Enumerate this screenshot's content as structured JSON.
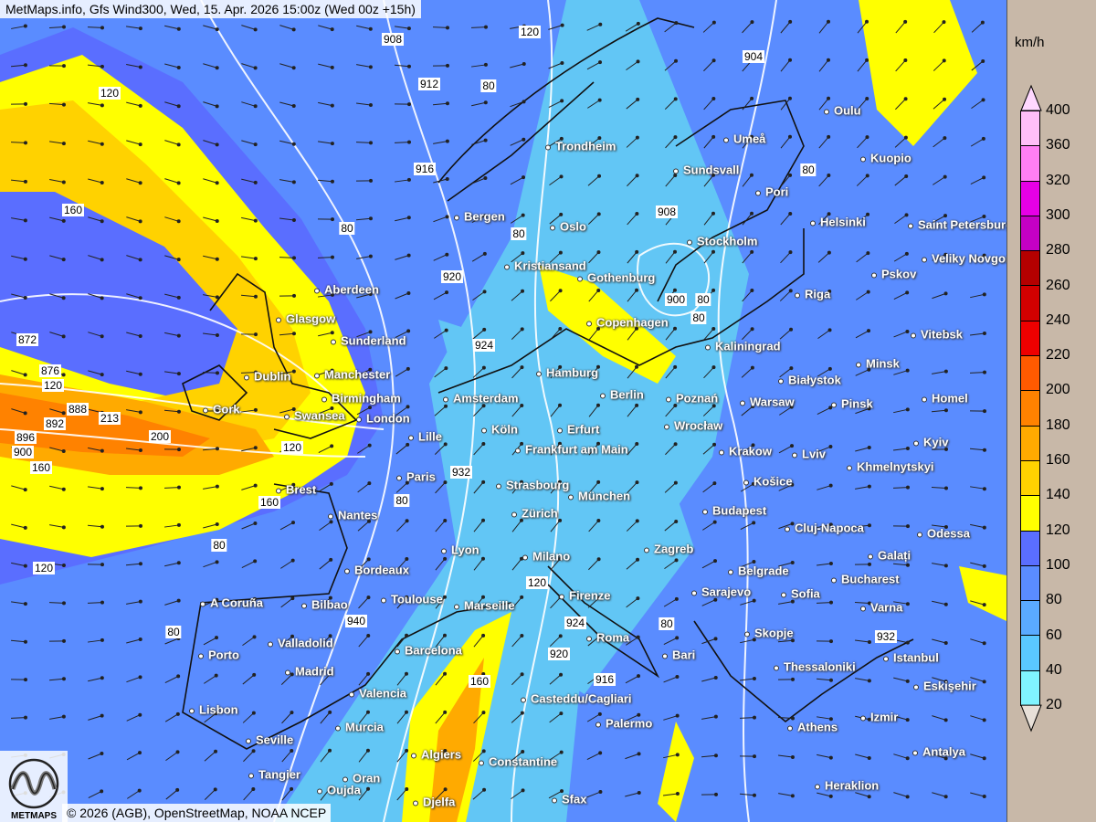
{
  "title": "MetMaps.info, Gfs Wind300, Wed, 15. Apr. 2026 15:00z (Wed 00z +15h)",
  "copyright": "© 2026 (AGB), OpenStreetMap, NOAA NCEP",
  "logo_text": "METMAPS",
  "legend": {
    "unit": "km/h",
    "levels": [
      "400",
      "360",
      "320",
      "300",
      "280",
      "260",
      "240",
      "220",
      "200",
      "180",
      "160",
      "140",
      "120",
      "100",
      "80",
      "60",
      "40",
      "20"
    ],
    "colors": [
      "#ffbff8",
      "#ff7ff4",
      "#e600e6",
      "#c400c4",
      "#b40000",
      "#d20000",
      "#ee0000",
      "#ff5a00",
      "#ff8200",
      "#ffaa00",
      "#ffd200",
      "#ffff00",
      "#5a6eff",
      "#5a8cff",
      "#5aaaff",
      "#5ac8ff",
      "#80f4ff"
    ],
    "top_cap_color": "#ffd8ff",
    "bottom_cap_color": "#e8e0d8"
  },
  "cities": [
    "Trondheim",
    "Umeå",
    "Oulu",
    "Kuopio",
    "Sundsvall",
    "Pori",
    "Bergen",
    "Oslo",
    "Helsinki",
    "Saint Petersburg",
    "Veliky Novgorod",
    "Kristiansand",
    "Gothenburg",
    "Stockholm",
    "Pskov",
    "Riga",
    "Aberdeen",
    "Glasgow",
    "Copenhagen",
    "Sunderland",
    "Kaliningrad",
    "Vitebsk",
    "Minsk",
    "Dublin",
    "Manchester",
    "Hamburg",
    "Białystok",
    "Birmingham",
    "Amsterdam",
    "Berlin",
    "Poznań",
    "Warsaw",
    "Pinsk",
    "Homel",
    "Cork",
    "Swansea",
    "London",
    "Köln",
    "Erfurt",
    "Wrocław",
    "Lille",
    "Frankfurt am Main",
    "Krakow",
    "Lviv",
    "Kyiv",
    "Khmelnytskyi",
    "Paris",
    "Strasbourg",
    "Košice",
    "Brest",
    "München",
    "Nantes",
    "Zürich",
    "Budapest",
    "Cluj-Napoca",
    "Odessa",
    "Lyon",
    "Milano",
    "Zagreb",
    "Galați",
    "Bordeaux",
    "Belgrade",
    "Bucharest",
    "A Coruña",
    "Bilbao",
    "Toulouse",
    "Marseille",
    "Firenze",
    "Sarajevo",
    "Varna",
    "Sofia",
    "Skopje",
    "Roma",
    "Porto",
    "Valladolid",
    "Barcelona",
    "Bari",
    "Istanbul",
    "Thessaloniki",
    "Madrid",
    "Eskişehir",
    "Valencia",
    "Casteddu/Cagliari",
    "Lisbon",
    "Izmir",
    "Murcia",
    "Palermo",
    "Athens",
    "Seville",
    "Algiers",
    "Constantine",
    "Antalya",
    "Tangier",
    "Oran",
    "Heraklion",
    "Sfax",
    "Oujda",
    "Djelfa"
  ],
  "contour_labels": [
    "908",
    "120",
    "912",
    "80",
    "904",
    "120",
    "916",
    "80",
    "160",
    "80",
    "80",
    "920",
    "908",
    "900",
    "872",
    "924",
    "80",
    "876",
    "120",
    "888",
    "892",
    "896",
    "900",
    "213",
    "200",
    "160",
    "120",
    "160",
    "932",
    "80",
    "80",
    "120",
    "940",
    "80",
    "924",
    "80",
    "920",
    "916",
    "932",
    "160",
    "120",
    "80"
  ]
}
